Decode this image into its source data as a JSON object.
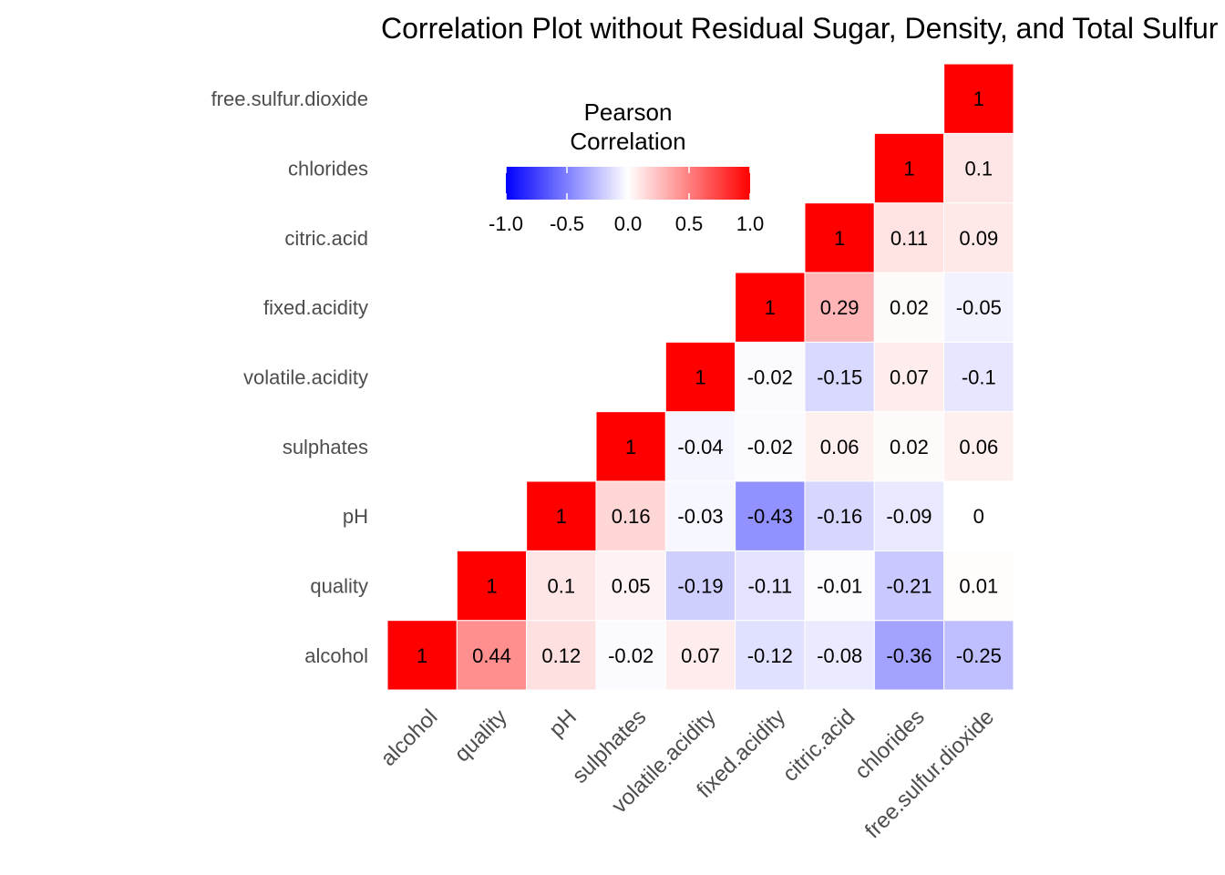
{
  "chart_data": {
    "type": "heatmap",
    "title": "Correlation Plot without Residual Sugar, Density, and Total Sulfur Dioxide",
    "variables": [
      "alcohol",
      "quality",
      "pH",
      "sulphates",
      "volatile.acidity",
      "fixed.acidity",
      "citric.acid",
      "chlorides",
      "free.sulfur.dioxide"
    ],
    "matrix": [
      [
        1,
        0.44,
        0.12,
        -0.02,
        0.07,
        -0.12,
        -0.08,
        -0.36,
        -0.25
      ],
      [
        null,
        1,
        0.1,
        0.05,
        -0.19,
        -0.11,
        -0.01,
        -0.21,
        0.01
      ],
      [
        null,
        null,
        1,
        0.16,
        -0.03,
        -0.43,
        -0.16,
        -0.09,
        0
      ],
      [
        null,
        null,
        null,
        1,
        -0.04,
        -0.02,
        0.06,
        0.02,
        0.06
      ],
      [
        null,
        null,
        null,
        null,
        1,
        -0.02,
        -0.15,
        0.07,
        -0.1
      ],
      [
        null,
        null,
        null,
        null,
        null,
        1,
        0.29,
        0.02,
        -0.05
      ],
      [
        null,
        null,
        null,
        null,
        null,
        null,
        1,
        0.11,
        0.09
      ],
      [
        null,
        null,
        null,
        null,
        null,
        null,
        null,
        1,
        0.1
      ],
      [
        null,
        null,
        null,
        null,
        null,
        null,
        null,
        null,
        1
      ]
    ],
    "legend": {
      "title_lines": [
        "Pearson",
        "Correlation"
      ],
      "ticks": [
        "-1.0",
        "-0.5",
        "0.0",
        "0.5",
        "1.0"
      ],
      "range": [
        -1,
        1
      ],
      "placement": "top-center"
    },
    "colors": {
      "low": "#0000ff",
      "mid": "#ffffff",
      "high": "#ff0000",
      "diagonal": "#ff0000"
    },
    "grid": false
  }
}
